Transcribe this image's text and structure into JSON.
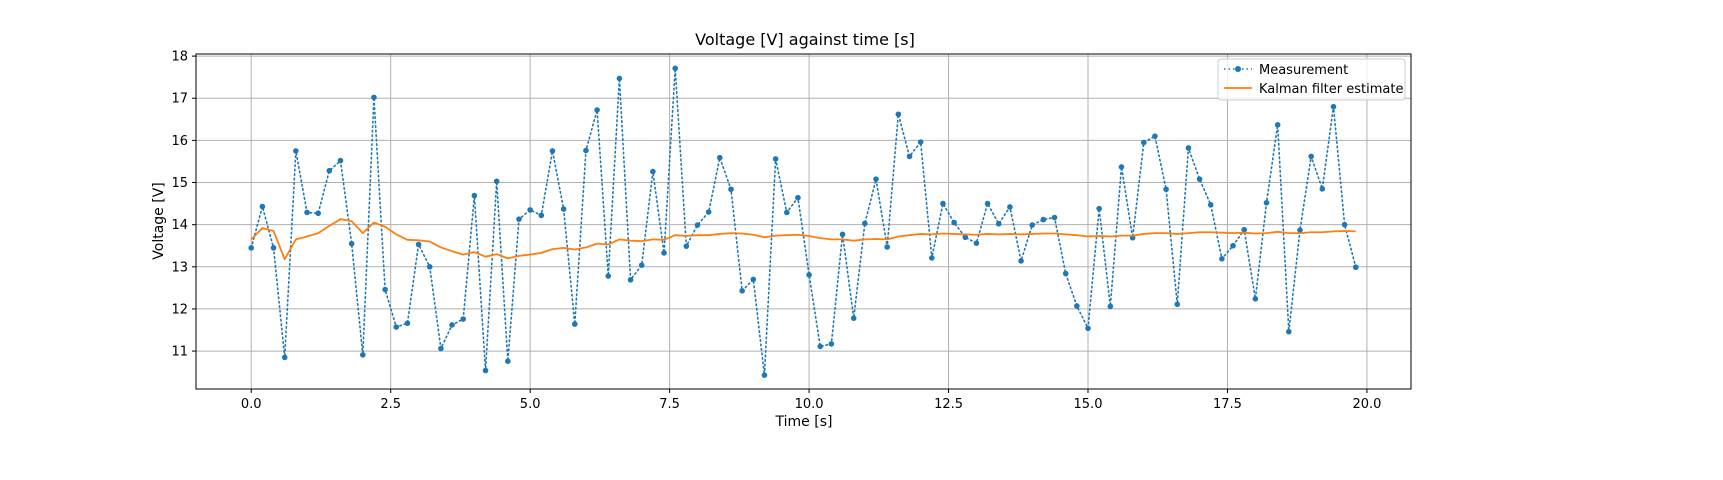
{
  "chart_data": {
    "type": "line",
    "title": "Voltage [V] against time [s]",
    "xlabel": "Time [s]",
    "ylabel": "Voltage [V]",
    "xlim": [
      -0.99,
      20.79
    ],
    "ylim": [
      10.1,
      18.05
    ],
    "xticks": [
      0.0,
      2.5,
      5.0,
      7.5,
      10.0,
      12.5,
      15.0,
      17.5,
      20.0
    ],
    "xtick_labels": [
      "0.0",
      "2.5",
      "5.0",
      "7.5",
      "10.0",
      "12.5",
      "15.0",
      "17.5",
      "20.0"
    ],
    "yticks": [
      11,
      12,
      13,
      14,
      15,
      16,
      17,
      18
    ],
    "ytick_labels": [
      "11",
      "12",
      "13",
      "14",
      "15",
      "16",
      "17",
      "18"
    ],
    "grid": true,
    "legend_position": "top-right",
    "x": [
      0.0,
      0.2,
      0.4,
      0.6,
      0.8,
      1.0,
      1.2,
      1.4,
      1.6,
      1.8,
      2.0,
      2.2,
      2.4,
      2.6,
      2.8,
      3.0,
      3.2,
      3.4,
      3.6,
      3.8,
      4.0,
      4.2,
      4.4,
      4.6,
      4.8,
      5.0,
      5.2,
      5.4,
      5.6,
      5.8,
      6.0,
      6.2,
      6.4,
      6.6,
      6.8,
      7.0,
      7.2,
      7.4,
      7.6,
      7.8,
      8.0,
      8.2,
      8.4,
      8.6,
      8.8,
      9.0,
      9.2,
      9.4,
      9.6,
      9.8,
      10.0,
      10.2,
      10.4,
      10.6,
      10.8,
      11.0,
      11.2,
      11.4,
      11.6,
      11.8,
      12.0,
      12.2,
      12.4,
      12.6,
      12.8,
      13.0,
      13.2,
      13.4,
      13.6,
      13.8,
      14.0,
      14.2,
      14.4,
      14.6,
      14.8,
      15.0,
      15.2,
      15.4,
      15.6,
      15.8,
      16.0,
      16.2,
      16.4,
      16.6,
      16.8,
      17.0,
      17.2,
      17.4,
      17.6,
      17.8,
      18.0,
      18.2,
      18.4,
      18.6,
      18.8,
      19.0,
      19.2,
      19.4,
      19.6,
      19.8
    ],
    "series": [
      {
        "name": "Measurement",
        "color": "#1f77b4",
        "style": "dotted-with-markers",
        "values": [
          13.45,
          14.43,
          13.45,
          10.85,
          15.75,
          14.29,
          14.27,
          15.28,
          15.52,
          13.55,
          10.91,
          17.02,
          12.46,
          11.57,
          11.66,
          13.53,
          13.0,
          11.06,
          11.62,
          11.76,
          14.69,
          10.54,
          15.03,
          10.76,
          14.13,
          14.35,
          14.22,
          15.75,
          14.37,
          11.64,
          15.76,
          16.72,
          12.78,
          17.47,
          12.69,
          13.04,
          15.26,
          13.33,
          17.71,
          13.49,
          13.99,
          14.3,
          15.59,
          14.84,
          12.43,
          12.7,
          10.43,
          15.56,
          14.29,
          14.64,
          12.81,
          11.11,
          11.17,
          13.77,
          11.78,
          14.03,
          15.08,
          13.47,
          16.62,
          15.62,
          15.96,
          13.21,
          14.5,
          14.05,
          13.7,
          13.56,
          14.5,
          14.02,
          14.42,
          13.14,
          13.99,
          14.12,
          14.17,
          12.84,
          12.07,
          11.54,
          14.38,
          12.06,
          15.37,
          13.69,
          15.95,
          16.1,
          14.84,
          12.11,
          15.82,
          15.08,
          14.47,
          13.19,
          13.5,
          13.88,
          12.24,
          14.52,
          16.37,
          11.46,
          13.87,
          15.62,
          14.85,
          16.8,
          14.0,
          12.99
        ]
      },
      {
        "name": "Kalman filter estimate",
        "color": "#ff7f0e",
        "style": "solid",
        "values": [
          13.65,
          13.92,
          13.85,
          13.18,
          13.65,
          13.72,
          13.8,
          13.97,
          14.13,
          14.08,
          13.8,
          14.05,
          13.95,
          13.77,
          13.64,
          13.63,
          13.6,
          13.46,
          13.37,
          13.29,
          13.35,
          13.24,
          13.3,
          13.2,
          13.26,
          13.29,
          13.33,
          13.42,
          13.45,
          13.41,
          13.46,
          13.55,
          13.53,
          13.65,
          13.62,
          13.61,
          13.65,
          13.64,
          13.75,
          13.73,
          13.75,
          13.75,
          13.78,
          13.8,
          13.79,
          13.76,
          13.7,
          13.74,
          13.75,
          13.76,
          13.73,
          13.68,
          13.65,
          13.65,
          13.62,
          13.65,
          13.66,
          13.65,
          13.72,
          13.75,
          13.78,
          13.77,
          13.79,
          13.78,
          13.77,
          13.76,
          13.78,
          13.77,
          13.78,
          13.77,
          13.78,
          13.79,
          13.79,
          13.77,
          13.75,
          13.72,
          13.73,
          13.72,
          13.74,
          13.74,
          13.78,
          13.8,
          13.8,
          13.78,
          13.8,
          13.82,
          13.82,
          13.81,
          13.8,
          13.81,
          13.79,
          13.8,
          13.83,
          13.8,
          13.8,
          13.82,
          13.82,
          13.84,
          13.85,
          13.84
        ]
      }
    ]
  }
}
